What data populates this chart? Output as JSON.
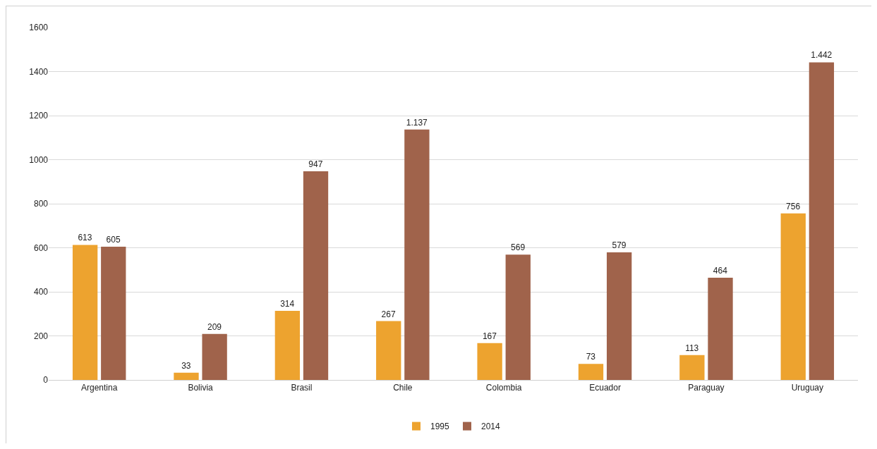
{
  "chart_data": {
    "type": "bar",
    "categories": [
      "Argentina",
      "Bolivia",
      "Brasil",
      "Chile",
      "Colombia",
      "Ecuador",
      "Paraguay",
      "Uruguay"
    ],
    "series": [
      {
        "name": "1995",
        "color": "#eda32f",
        "values": [
          613,
          33,
          314,
          267,
          167,
          73,
          113,
          756
        ],
        "value_labels": [
          "613",
          "33",
          "314",
          "267",
          "167",
          "73",
          "113",
          "756"
        ]
      },
      {
        "name": "2014",
        "color": "#a0634b",
        "values": [
          605,
          209,
          947,
          1137,
          569,
          579,
          464,
          1442
        ],
        "value_labels": [
          "605",
          "209",
          "947",
          "1.137",
          "569",
          "579",
          "464",
          "1.442"
        ]
      }
    ],
    "ylim": [
      0,
      1600
    ],
    "yticks": [
      0,
      200,
      400,
      600,
      800,
      1000,
      1200,
      1400,
      1600
    ],
    "grid": "y",
    "legend": "bottom"
  }
}
